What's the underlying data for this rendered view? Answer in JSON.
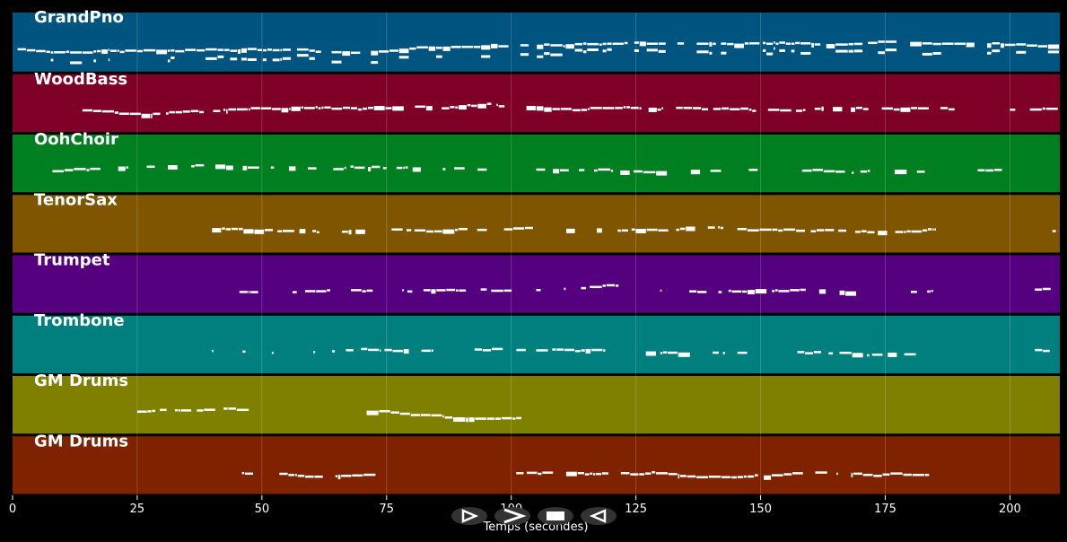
{
  "chart_data": {
    "type": "piano-roll",
    "xlabel": "Temps (secondes)",
    "xlim": [
      0,
      210
    ],
    "xticks": [
      0,
      25,
      50,
      75,
      100,
      125,
      150,
      175,
      200
    ],
    "grid": true,
    "note_color": "#ffffff",
    "tracks": [
      {
        "name": "GrandPno",
        "color": "#005580",
        "segments": [
          [
            1,
            208
          ]
        ],
        "density": 0.9
      },
      {
        "name": "WoodBass",
        "color": "#7f0027",
        "segments": [
          [
            14,
            188
          ],
          [
            200,
            201
          ],
          [
            204,
            209
          ]
        ],
        "density": 0.8
      },
      {
        "name": "OohChoir",
        "color": "#007f20",
        "segments": [
          [
            8,
            100
          ],
          [
            105,
            130
          ],
          [
            136,
            182
          ],
          [
            189,
            200
          ]
        ],
        "density": 0.45
      },
      {
        "name": "TenorSax",
        "color": "#7f5500",
        "segments": [
          [
            40,
            70
          ],
          [
            76,
            104
          ],
          [
            107,
            185
          ],
          [
            205,
            209
          ]
        ],
        "density": 0.65
      },
      {
        "name": "Trumpet",
        "color": "#55007f",
        "segments": [
          [
            40,
            102
          ],
          [
            105,
            122
          ],
          [
            127,
            185
          ],
          [
            205,
            209
          ]
        ],
        "density": 0.6
      },
      {
        "name": "Trombone",
        "color": "#007f7f",
        "segments": [
          [
            40,
            102
          ],
          [
            105,
            122
          ],
          [
            127,
            185
          ],
          [
            205,
            209
          ]
        ],
        "density": 0.6
      },
      {
        "name": "GM Drums",
        "color": "#7f7f00",
        "segments": [
          [
            25,
            45
          ],
          [
            71,
            101
          ]
        ],
        "density": 0.95
      },
      {
        "name": "GM Drums",
        "color": "#7f2200",
        "segments": [
          [
            46,
            71
          ],
          [
            101,
            183
          ]
        ],
        "density": 0.85
      }
    ]
  },
  "controls": [
    {
      "name": "play-button",
      "icon": "play-icon"
    },
    {
      "name": "forward-button",
      "icon": "forward-icon"
    },
    {
      "name": "stop-button",
      "icon": "stop-icon"
    },
    {
      "name": "back-button",
      "icon": "back-icon"
    }
  ]
}
